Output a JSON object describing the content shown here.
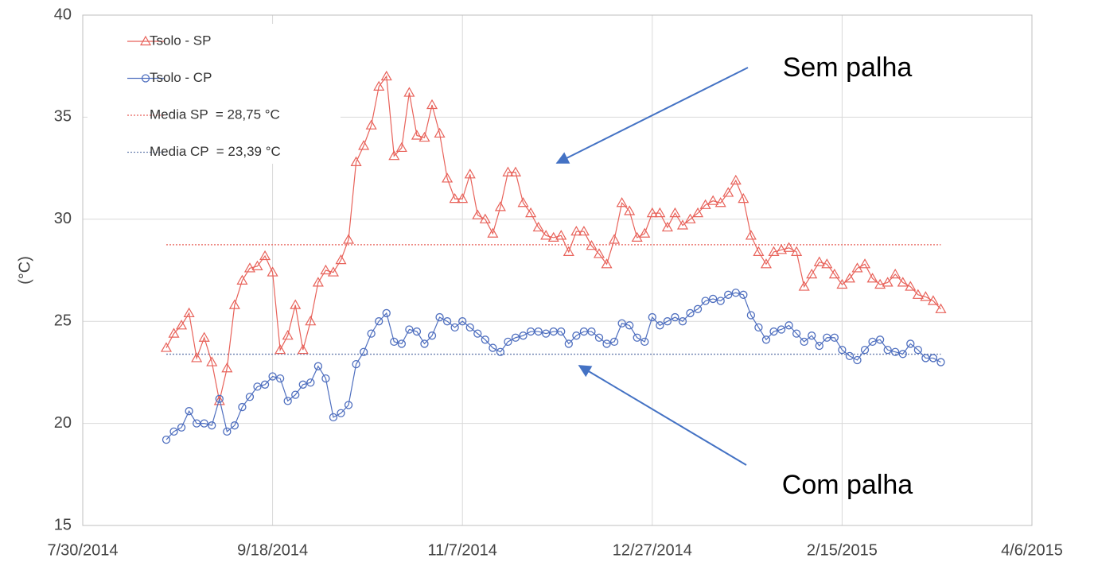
{
  "chart_data": {
    "type": "line",
    "ylabel": "(°C)",
    "x": [
      "8/21/2014",
      "8/23/2014",
      "8/25/2014",
      "8/27/2014",
      "8/29/2014",
      "8/31/2014",
      "9/2/2014",
      "9/4/2014",
      "9/6/2014",
      "9/8/2014",
      "9/10/2014",
      "9/12/2014",
      "9/14/2014",
      "9/16/2014",
      "9/18/2014",
      "9/20/2014",
      "9/22/2014",
      "9/24/2014",
      "9/26/2014",
      "9/28/2014",
      "9/30/2014",
      "10/2/2014",
      "10/4/2014",
      "10/6/2014",
      "10/8/2014",
      "10/10/2014",
      "10/12/2014",
      "10/14/2014",
      "10/16/2014",
      "10/18/2014",
      "10/20/2014",
      "10/22/2014",
      "10/24/2014",
      "10/26/2014",
      "10/28/2014",
      "10/30/2014",
      "11/1/2014",
      "11/3/2014",
      "11/5/2014",
      "11/7/2014",
      "11/9/2014",
      "11/11/2014",
      "11/13/2014",
      "11/15/2014",
      "11/17/2014",
      "11/19/2014",
      "11/21/2014",
      "11/23/2014",
      "11/25/2014",
      "11/27/2014",
      "11/29/2014",
      "12/1/2014",
      "12/3/2014",
      "12/5/2014",
      "12/7/2014",
      "12/9/2014",
      "12/11/2014",
      "12/13/2014",
      "12/15/2014",
      "12/17/2014",
      "12/19/2014",
      "12/21/2014",
      "12/23/2014",
      "12/25/2014",
      "12/27/2014",
      "12/29/2014",
      "12/31/2014",
      "1/2/2015",
      "1/4/2015",
      "1/6/2015",
      "1/8/2015",
      "1/10/2015",
      "1/12/2015",
      "1/14/2015",
      "1/16/2015",
      "1/18/2015",
      "1/20/2015",
      "1/22/2015",
      "1/24/2015",
      "1/26/2015",
      "1/28/2015",
      "1/30/2015",
      "2/1/2015",
      "2/3/2015",
      "2/5/2015",
      "2/7/2015",
      "2/9/2015",
      "2/11/2015",
      "2/13/2015",
      "2/15/2015",
      "2/17/2015",
      "2/19/2015",
      "2/21/2015",
      "2/23/2015",
      "2/25/2015",
      "2/27/2015",
      "3/1/2015",
      "3/3/2015",
      "3/5/2015",
      "3/7/2015",
      "3/9/2015",
      "3/11/2015",
      "3/13/2015"
    ],
    "series": [
      {
        "name": "Tsolo - SP",
        "color": "#e8625a",
        "marker": "triangle",
        "values": [
          23.7,
          24.4,
          24.8,
          25.4,
          23.2,
          24.2,
          23.0,
          21.1,
          22.7,
          25.8,
          27.0,
          27.6,
          27.7,
          28.2,
          27.4,
          23.6,
          24.3,
          25.8,
          23.6,
          25.0,
          26.9,
          27.5,
          27.4,
          28.0,
          29.0,
          32.8,
          33.6,
          34.6,
          36.5,
          37.0,
          33.1,
          33.5,
          36.2,
          34.1,
          34.0,
          35.6,
          34.2,
          32.0,
          31.0,
          31.0,
          32.2,
          30.2,
          30.0,
          29.3,
          30.6,
          32.3,
          32.3,
          30.8,
          30.3,
          29.6,
          29.2,
          29.1,
          29.2,
          28.4,
          29.4,
          29.4,
          28.7,
          28.3,
          27.8,
          29.0,
          30.8,
          30.4,
          29.1,
          29.3,
          30.3,
          30.3,
          29.6,
          30.3,
          29.7,
          30.0,
          30.3,
          30.7,
          30.9,
          30.8,
          31.3,
          31.9,
          31.0,
          29.2,
          28.4,
          27.8,
          28.4,
          28.5,
          28.6,
          28.4,
          26.7,
          27.3,
          27.9,
          27.8,
          27.3,
          26.8,
          27.1,
          27.6,
          27.8,
          27.1,
          26.8,
          26.9,
          27.3,
          26.9,
          26.7,
          26.3,
          26.2,
          26.0,
          25.6
        ]
      },
      {
        "name": "Tsolo - CP",
        "color": "#4f6fbf",
        "marker": "circle",
        "values": [
          19.2,
          19.6,
          19.8,
          20.6,
          20.0,
          20.0,
          19.9,
          21.2,
          19.6,
          19.9,
          20.8,
          21.3,
          21.8,
          21.9,
          22.3,
          22.2,
          21.1,
          21.4,
          21.9,
          22.0,
          22.8,
          22.2,
          20.3,
          20.5,
          20.9,
          22.9,
          23.5,
          24.4,
          25.0,
          25.4,
          24.0,
          23.9,
          24.6,
          24.5,
          23.9,
          24.3,
          25.2,
          25.0,
          24.7,
          25.0,
          24.7,
          24.4,
          24.1,
          23.7,
          23.5,
          24.0,
          24.2,
          24.3,
          24.5,
          24.5,
          24.4,
          24.5,
          24.5,
          23.9,
          24.3,
          24.5,
          24.5,
          24.2,
          23.9,
          24.0,
          24.9,
          24.8,
          24.2,
          24.0,
          25.2,
          24.8,
          25.0,
          25.2,
          25.0,
          25.4,
          25.6,
          26.0,
          26.1,
          26.0,
          26.3,
          26.4,
          26.3,
          25.3,
          24.7,
          24.1,
          24.5,
          24.6,
          24.8,
          24.4,
          24.0,
          24.3,
          23.8,
          24.2,
          24.2,
          23.6,
          23.3,
          23.1,
          23.6,
          24.0,
          24.1,
          23.6,
          23.5,
          23.4,
          23.9,
          23.6,
          23.2,
          23.2,
          23.0
        ]
      }
    ],
    "reference_lines": [
      {
        "name": "Media SP  = 28,75 °C",
        "value": 28.75,
        "color": "#e8625a"
      },
      {
        "name": "Media CP  = 23,39 °C",
        "value": 23.39,
        "color": "#6a7fae"
      }
    ],
    "annotations": [
      {
        "text": "Sem palha"
      },
      {
        "text": "Com palha"
      }
    ],
    "xlim": [
      "7/30/2014",
      "4/6/2015"
    ],
    "xticks": [
      "7/30/2014",
      "9/18/2014",
      "11/7/2014",
      "12/27/2014",
      "2/15/2015",
      "4/6/2015"
    ],
    "ylim": [
      15,
      40
    ],
    "yticks": [
      15,
      20,
      25,
      30,
      35,
      40
    ],
    "grid": true,
    "legend": "upper left"
  }
}
